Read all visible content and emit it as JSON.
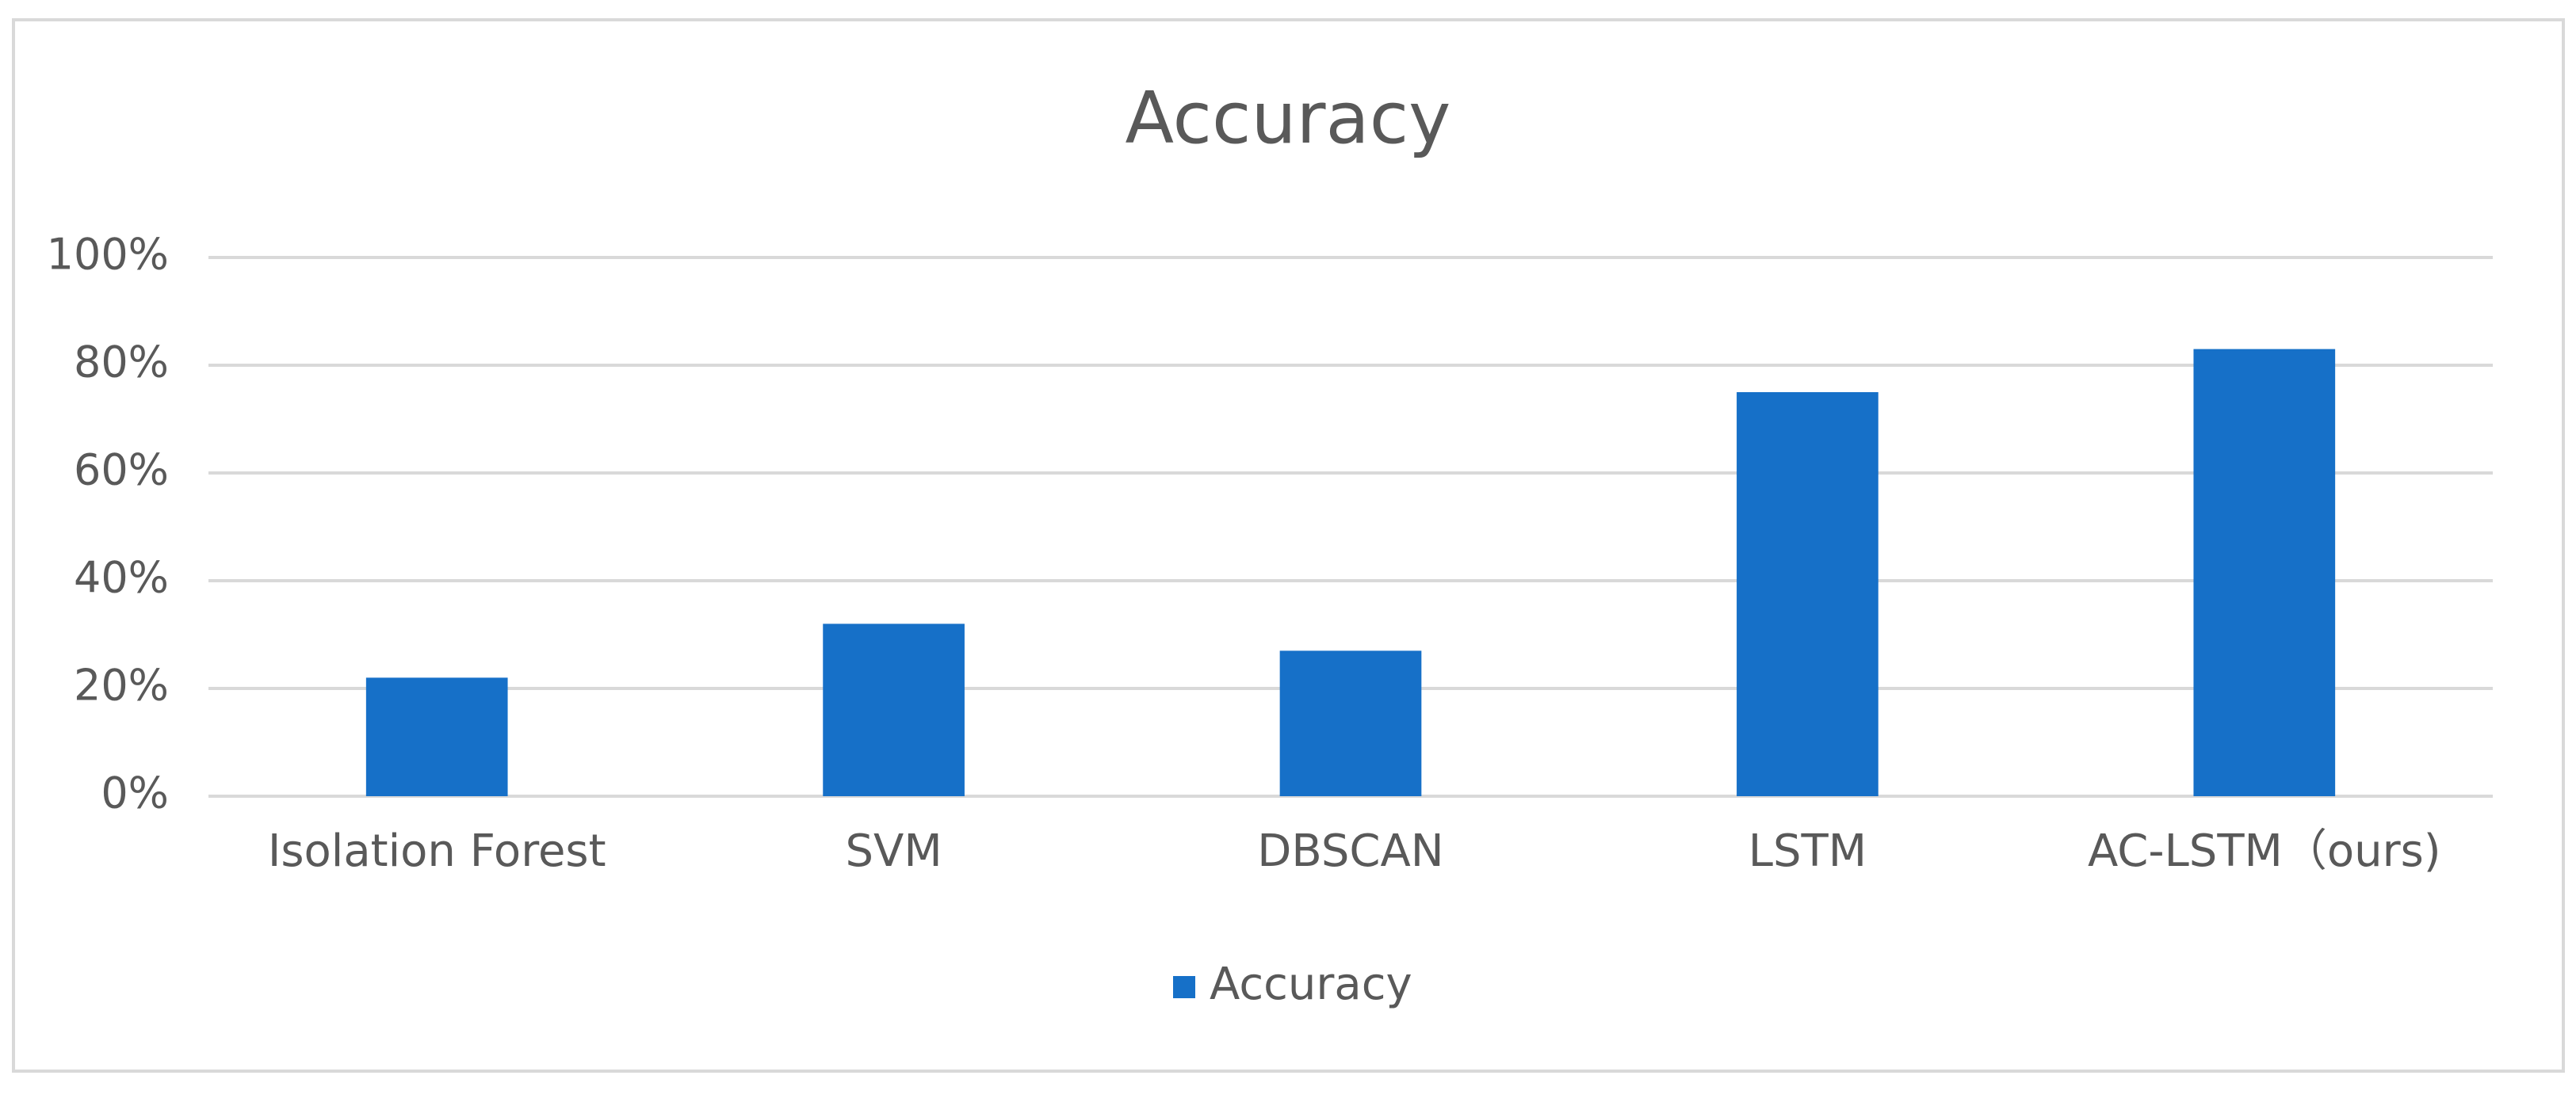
{
  "chart_data": {
    "type": "bar",
    "title": "Accuracy",
    "categories": [
      "Isolation Forest",
      "SVM",
      "DBSCAN",
      "LSTM",
      "AC-LSTM（ours)"
    ],
    "series": [
      {
        "name": "Accuracy",
        "color": "#1670c8",
        "values": [
          22,
          32,
          27,
          75,
          83
        ]
      }
    ],
    "ylim": [
      0,
      100
    ],
    "yticks": [
      {
        "value": 0,
        "label": "0%"
      },
      {
        "value": 20,
        "label": "20%"
      },
      {
        "value": 40,
        "label": "40%"
      },
      {
        "value": 60,
        "label": "60%"
      },
      {
        "value": 80,
        "label": "80%"
      },
      {
        "value": 100,
        "label": "100%"
      }
    ],
    "grid": true,
    "legend": "bottom"
  }
}
